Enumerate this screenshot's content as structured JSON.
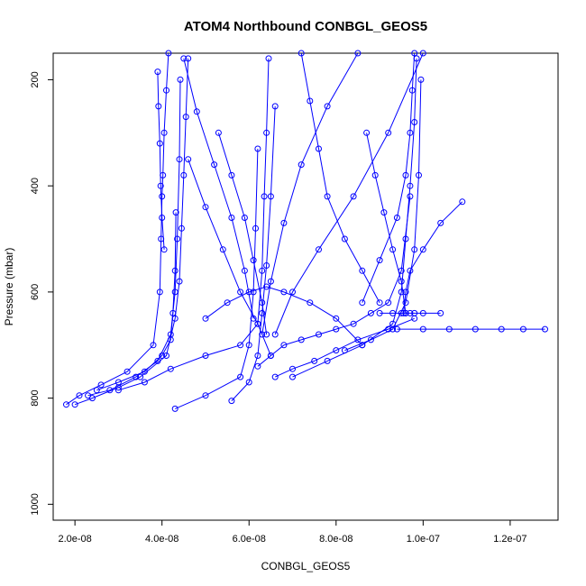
{
  "chart_data": {
    "type": "scatter",
    "title": "ATOM4 Northbound CONBGL_GEOS5",
    "xlabel": "CONBGL_GEOS5",
    "ylabel": "Pressure (mbar)",
    "xlim": [
      1.5e-08,
      1.31e-07
    ],
    "ylim": [
      1030,
      150
    ],
    "y_reversed": true,
    "x_ticks": [
      2e-08,
      4e-08,
      6e-08,
      8e-08,
      1e-07,
      1.2e-07
    ],
    "x_tick_labels": [
      "2.0e-08",
      "4.0e-08",
      "6.0e-08",
      "8.0e-08",
      "1.0e-07",
      "1.2e-07"
    ],
    "y_ticks": [
      200,
      400,
      600,
      800,
      1000
    ],
    "y_tick_labels": [
      "200",
      "400",
      "600",
      "800",
      "1000"
    ],
    "grid": false,
    "marker": "open-circle",
    "series_color": "#0000ff",
    "series": [
      {
        "x": [
          1.8e-08,
          2.1e-08,
          2.6e-08,
          3.2e-08,
          3.8e-08,
          3.95e-08,
          3.98e-08,
          4e-08,
          4.02e-08,
          4.05e-08,
          4.1e-08,
          4.15e-08
        ],
        "y": [
          812,
          795,
          775,
          750,
          700,
          600,
          500,
          420,
          380,
          300,
          220,
          150
        ]
      },
      {
        "x": [
          2e-08,
          2.4e-08,
          3e-08,
          3.5e-08,
          4.1e-08,
          4.3e-08,
          4.4e-08,
          4.45e-08,
          4.5e-08,
          4.55e-08,
          4.6e-08
        ],
        "y": [
          812,
          800,
          780,
          760,
          720,
          650,
          580,
          480,
          380,
          270,
          160
        ]
      },
      {
        "x": [
          2.3e-08,
          2.8e-08,
          3.4e-08,
          3.9e-08,
          4.2e-08,
          4.3e-08,
          4.35e-08,
          4.4e-08,
          4.42e-08
        ],
        "y": [
          795,
          785,
          760,
          730,
          680,
          600,
          500,
          350,
          200
        ]
      },
      {
        "x": [
          2.5e-08,
          3e-08,
          3.6e-08,
          4e-08,
          4.2e-08,
          4.25e-08,
          4.3e-08,
          4.32e-08
        ],
        "y": [
          785,
          770,
          750,
          720,
          690,
          640,
          560,
          450
        ]
      },
      {
        "x": [
          3e-08,
          3.6e-08,
          4.2e-08,
          5e-08,
          5.8e-08,
          6.2e-08,
          6.3e-08,
          6.35e-08,
          6.4e-08,
          6.45e-08
        ],
        "y": [
          785,
          770,
          745,
          720,
          700,
          660,
          560,
          420,
          300,
          160
        ]
      },
      {
        "x": [
          4.3e-08,
          5e-08,
          5.8e-08,
          6e-08,
          6.1e-08,
          6.15e-08,
          6.2e-08
        ],
        "y": [
          820,
          795,
          760,
          700,
          600,
          480,
          330
        ]
      },
      {
        "x": [
          5.6e-08,
          6e-08,
          6.2e-08,
          6.3e-08,
          6.4e-08,
          6.5e-08,
          6.6e-08
        ],
        "y": [
          805,
          770,
          720,
          640,
          550,
          420,
          250
        ]
      },
      {
        "x": [
          6.2e-08,
          6.5e-08,
          6.8e-08,
          7.2e-08,
          7.6e-08,
          8e-08,
          8.4e-08,
          8.8e-08,
          9.2e-08,
          9.5e-08,
          9.7e-08
        ],
        "y": [
          740,
          720,
          700,
          690,
          680,
          670,
          660,
          640,
          620,
          560,
          420
        ]
      },
      {
        "x": [
          7e-08,
          7.8e-08,
          8.6e-08,
          9.3e-08,
          9.5e-08,
          9.6e-08,
          9.7e-08,
          9.8e-08,
          9.85e-08
        ],
        "y": [
          760,
          730,
          700,
          660,
          600,
          500,
          400,
          280,
          160
        ]
      },
      {
        "x": [
          8.2e-08,
          8.8e-08,
          9.3e-08,
          9.6e-08,
          9.8e-08,
          9.9e-08,
          9.95e-08
        ],
        "y": [
          710,
          690,
          670,
          620,
          520,
          380,
          200
        ]
      },
      {
        "x": [
          9.4e-08,
          1e-07,
          1.06e-07,
          1.12e-07,
          1.18e-07,
          1.23e-07,
          1.28e-07
        ],
        "y": [
          670,
          670,
          670,
          670,
          670,
          670,
          670
        ]
      },
      {
        "x": [
          9e-08,
          9.3e-08,
          9.5e-08,
          9.6e-08,
          9.7e-08,
          9.8e-08,
          1e-07,
          1.04e-07
        ],
        "y": [
          640,
          640,
          640,
          640,
          640,
          640,
          640,
          640
        ]
      },
      {
        "x": [
          1.09e-07,
          1.04e-07,
          1e-07,
          9.7e-08,
          9.6e-08,
          9.55e-08
        ],
        "y": [
          430,
          470,
          520,
          560,
          600,
          640
        ]
      },
      {
        "x": [
          8.7e-08,
          8.9e-08,
          9.1e-08,
          9.3e-08,
          9.5e-08,
          9.6e-08
        ],
        "y": [
          300,
          380,
          450,
          520,
          580,
          640
        ]
      },
      {
        "x": [
          7.2e-08,
          7.4e-08,
          7.6e-08,
          7.8e-08,
          8.2e-08,
          8.6e-08,
          9e-08
        ],
        "y": [
          150,
          240,
          330,
          420,
          500,
          560,
          620
        ]
      },
      {
        "x": [
          5.3e-08,
          5.6e-08,
          5.9e-08,
          6.1e-08,
          6.3e-08,
          6.4e-08
        ],
        "y": [
          300,
          380,
          460,
          540,
          620,
          680
        ]
      },
      {
        "x": [
          4.6e-08,
          5e-08,
          5.4e-08,
          5.8e-08,
          6.2e-08,
          6.5e-08
        ],
        "y": [
          350,
          440,
          520,
          600,
          660,
          720
        ]
      },
      {
        "x": [
          8.5e-08,
          7.8e-08,
          7.2e-08,
          6.8e-08,
          6.5e-08,
          6.3e-08
        ],
        "y": [
          150,
          250,
          360,
          470,
          580,
          680
        ]
      },
      {
        "x": [
          1e-07,
          9.2e-08,
          8.4e-08,
          7.6e-08,
          7e-08,
          6.6e-08
        ],
        "y": [
          150,
          300,
          420,
          520,
          600,
          680
        ]
      },
      {
        "x": [
          5e-08,
          5.5e-08,
          6e-08,
          6.4e-08,
          6.8e-08,
          7.4e-08,
          8e-08,
          8.6e-08
        ],
        "y": [
          650,
          620,
          600,
          590,
          600,
          620,
          650,
          700
        ]
      },
      {
        "x": [
          3.9e-08,
          3.92e-08,
          3.95e-08,
          3.97e-08,
          4e-08,
          4.05e-08
        ],
        "y": [
          185,
          250,
          320,
          400,
          460,
          520
        ]
      },
      {
        "x": [
          4.5e-08,
          4.8e-08,
          5.2e-08,
          5.6e-08,
          5.9e-08,
          6.1e-08
        ],
        "y": [
          160,
          260,
          360,
          460,
          560,
          650
        ]
      },
      {
        "x": [
          9.8e-08,
          9.75e-08,
          9.7e-08,
          9.6e-08,
          9.4e-08,
          9e-08,
          8.6e-08
        ],
        "y": [
          150,
          220,
          300,
          380,
          460,
          540,
          620
        ]
      },
      {
        "x": [
          6.6e-08,
          7e-08,
          7.5e-08,
          8e-08,
          8.5e-08,
          9.2e-08,
          9.8e-08
        ],
        "y": [
          760,
          745,
          730,
          710,
          690,
          670,
          650
        ]
      }
    ]
  }
}
